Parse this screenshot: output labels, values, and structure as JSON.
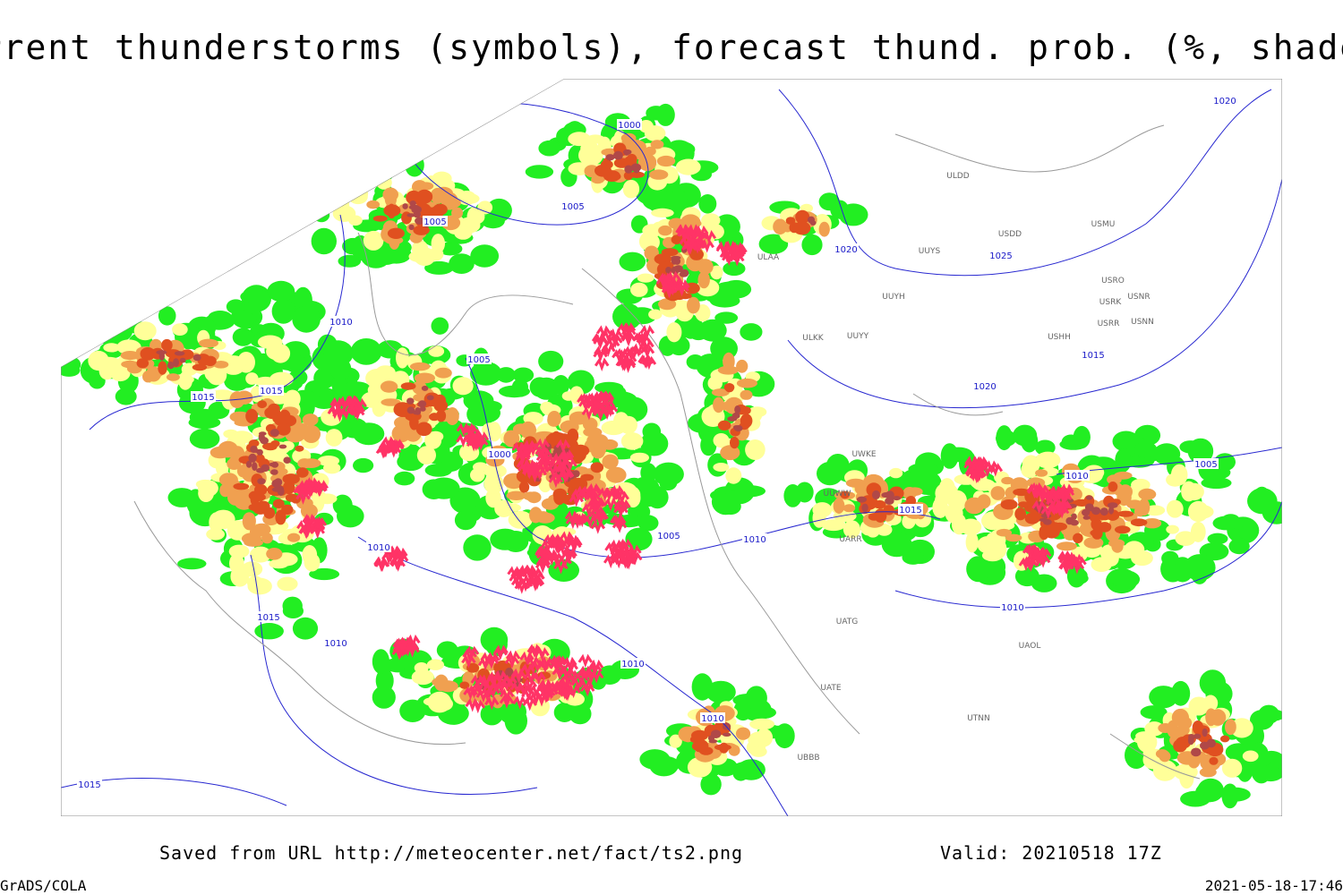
{
  "header": {
    "title": "Current thunderstorms (symbols), forecast thund. prob. (%, shaded)"
  },
  "footer": {
    "source": "Saved from URL http://meteocenter.net/fact/ts2.png",
    "valid": "Valid: 20210518 17Z",
    "software": "GrADS/COLA",
    "timestamp": "2021-05-18-17:46"
  },
  "map": {
    "isobar_labels": [
      "1000",
      "1005",
      "1005",
      "1020",
      "1025",
      "1020",
      "1010",
      "1005",
      "1015",
      "1015",
      "1000",
      "1010",
      "1005",
      "1015",
      "1005",
      "1010",
      "1010",
      "1015",
      "1010",
      "1010",
      "1010",
      "1010",
      "1015",
      "1020",
      "1015"
    ],
    "station_labels": [
      "ULDD",
      "USDD",
      "USMU",
      "UUYS",
      "UUYH",
      "UUYY",
      "ULKK",
      "USRO",
      "USRK",
      "USNR",
      "USRR",
      "USNN",
      "USHH",
      "UTNN",
      "UATE",
      "UATG",
      "UAOL",
      "ULAA",
      "UWKE",
      "UUWW",
      "UARR",
      "UBBB"
    ]
  }
}
